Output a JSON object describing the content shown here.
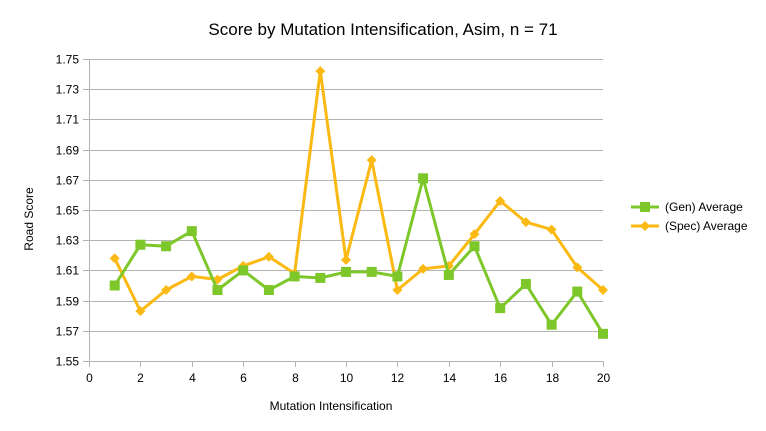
{
  "chart_data": {
    "type": "line",
    "title": "Score by Mutation Intensification, Asim, n = 71",
    "xlabel": "Mutation Intensification",
    "ylabel": "Road Score",
    "xlim": [
      0,
      20
    ],
    "ylim": [
      1.55,
      1.75
    ],
    "x_ticks": [
      0,
      2,
      4,
      6,
      8,
      10,
      12,
      14,
      16,
      18,
      20
    ],
    "y_ticks": [
      1.55,
      1.57,
      1.59,
      1.61,
      1.63,
      1.65,
      1.67,
      1.69,
      1.71,
      1.73,
      1.75
    ],
    "grid": "horizontal",
    "legend_position": "right",
    "x": [
      1,
      2,
      3,
      4,
      5,
      6,
      7,
      8,
      9,
      10,
      11,
      12,
      13,
      14,
      15,
      16,
      17,
      18,
      19,
      20
    ],
    "series": [
      {
        "name": "(Gen) Average",
        "color": "#7dc72b",
        "marker": "square",
        "values": [
          1.6,
          1.627,
          1.626,
          1.636,
          1.597,
          1.61,
          1.597,
          1.606,
          1.605,
          1.609,
          1.609,
          1.606,
          1.671,
          1.607,
          1.626,
          1.585,
          1.601,
          1.574,
          1.596,
          1.568
        ]
      },
      {
        "name": "(Spec) Average",
        "color": "#fbb913",
        "marker": "diamond",
        "values": [
          1.618,
          1.583,
          1.597,
          1.606,
          1.604,
          1.613,
          1.619,
          1.608,
          1.742,
          1.617,
          1.683,
          1.597,
          1.611,
          1.613,
          1.634,
          1.656,
          1.642,
          1.637,
          1.612,
          1.597
        ]
      }
    ]
  }
}
